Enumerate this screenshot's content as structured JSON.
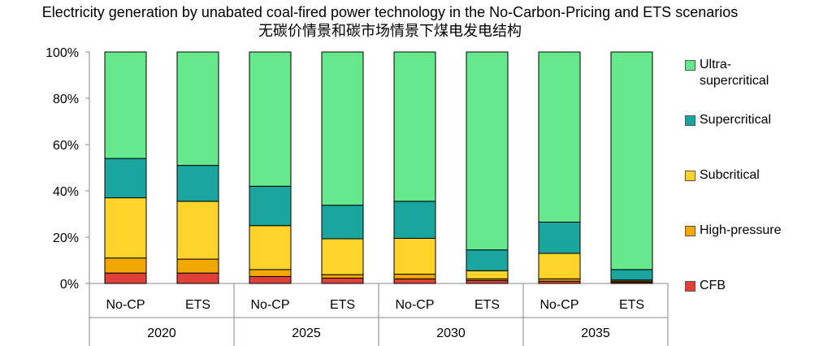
{
  "title": "Electricity generation by unabated coal-fired power technology in the No-Carbon-Pricing and ETS scenarios",
  "subtitle": "无碳价情景和碳市场情景下煤电发电结构",
  "chart_data": {
    "type": "bar",
    "stacked": true,
    "groups": [
      "2020",
      "2025",
      "2030",
      "2035"
    ],
    "categories": [
      "No-CP",
      "ETS",
      "No-CP",
      "ETS",
      "No-CP",
      "ETS",
      "No-CP",
      "ETS"
    ],
    "ylim": [
      0,
      100
    ],
    "yticks": [
      "0%",
      "20%",
      "40%",
      "60%",
      "80%",
      "100%"
    ],
    "grid": false,
    "legend_position": "right",
    "series": [
      {
        "name": "CFB",
        "color": "#e0403a",
        "values": [
          4.5,
          4.5,
          3.0,
          2.3,
          2.0,
          1.3,
          1.0,
          0.5
        ]
      },
      {
        "name": "High-pressure",
        "color": "#f2a800",
        "values": [
          6.5,
          6.0,
          3.0,
          1.5,
          2.0,
          0.7,
          1.0,
          0.5
        ]
      },
      {
        "name": "Subcritical",
        "color": "#ffd42a",
        "values": [
          26.0,
          25.0,
          19.0,
          15.5,
          15.5,
          3.5,
          11.0,
          0.5
        ]
      },
      {
        "name": "Supercritical",
        "color": "#1aa69e",
        "values": [
          17.0,
          15.5,
          17.0,
          14.5,
          16.0,
          9.0,
          13.5,
          4.5
        ]
      },
      {
        "name": "Ultra-supercritical",
        "color": "#66e88c",
        "values": [
          46.0,
          49.0,
          58.0,
          66.2,
          64.5,
          85.5,
          73.5,
          94.0
        ]
      }
    ],
    "legend_order": [
      "Ultra-supercritical",
      "Supercritical",
      "Subcritical",
      "High-pressure",
      "CFB"
    ],
    "legend_labels": {
      "Ultra-supercritical": [
        "Ultra-",
        "supercritical"
      ],
      "Supercritical": [
        "Supercritical"
      ],
      "Subcritical": [
        "Subcritical"
      ],
      "High-pressure": [
        "High-pressure"
      ],
      "CFB": [
        "CFB"
      ]
    }
  }
}
